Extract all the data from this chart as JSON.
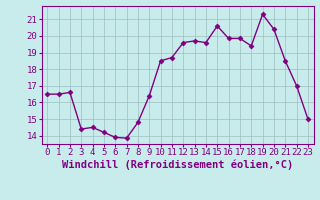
{
  "x": [
    0,
    1,
    2,
    3,
    4,
    5,
    6,
    7,
    8,
    9,
    10,
    11,
    12,
    13,
    14,
    15,
    16,
    17,
    18,
    19,
    20,
    21,
    22,
    23
  ],
  "y": [
    16.5,
    16.5,
    16.6,
    14.4,
    14.5,
    14.2,
    13.9,
    13.85,
    14.8,
    16.4,
    18.5,
    18.7,
    19.6,
    19.7,
    19.6,
    20.6,
    19.85,
    19.85,
    19.4,
    21.3,
    20.4,
    18.5,
    17.0,
    15.0
  ],
  "line_color": "#800080",
  "marker": "D",
  "marker_size": 2.5,
  "bg_color": "#c8ecec",
  "grid_color": "#9fbfbf",
  "xlabel": "Windchill (Refroidissement éolien,°C)",
  "ylim": [
    13.5,
    21.8
  ],
  "xlim": [
    -0.5,
    23.5
  ],
  "yticks": [
    14,
    15,
    16,
    17,
    18,
    19,
    20,
    21
  ],
  "xticks": [
    0,
    1,
    2,
    3,
    4,
    5,
    6,
    7,
    8,
    9,
    10,
    11,
    12,
    13,
    14,
    15,
    16,
    17,
    18,
    19,
    20,
    21,
    22,
    23
  ],
  "tick_color": "#800080",
  "xlabel_color": "#800080",
  "xlabel_fontsize": 7.5,
  "tick_fontsize": 6.5,
  "line_width": 1.0
}
